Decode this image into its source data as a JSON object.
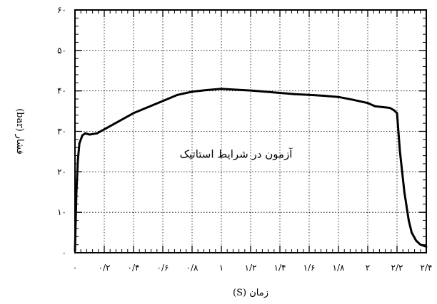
{
  "chart_data": {
    "type": "line",
    "title": "",
    "xlabel": "زمان (S)",
    "ylabel": "فشار (bar)",
    "annotation": "آزمون در شرایط استاتیک",
    "xlim": [
      0,
      2.4
    ],
    "ylim": [
      0,
      60
    ],
    "grid": true,
    "x_ticks": [
      {
        "value": 0,
        "label": "۰"
      },
      {
        "value": 0.2,
        "label": "۰/۲"
      },
      {
        "value": 0.4,
        "label": "۰/۴"
      },
      {
        "value": 0.6,
        "label": "۰/۶"
      },
      {
        "value": 0.8,
        "label": "۰/۸"
      },
      {
        "value": 1.0,
        "label": "۱"
      },
      {
        "value": 1.2,
        "label": "۱/۲"
      },
      {
        "value": 1.4,
        "label": "۱/۴"
      },
      {
        "value": 1.6,
        "label": "۱/۶"
      },
      {
        "value": 1.8,
        "label": "۱/۸"
      },
      {
        "value": 2.0,
        "label": "۲"
      },
      {
        "value": 2.2,
        "label": "۲/۲"
      },
      {
        "value": 2.4,
        "label": "۲/۴"
      }
    ],
    "y_ticks": [
      {
        "value": 0,
        "label": "۰"
      },
      {
        "value": 10,
        "label": "۱۰"
      },
      {
        "value": 20,
        "label": "۲۰"
      },
      {
        "value": 30,
        "label": "۳۰"
      },
      {
        "value": 40,
        "label": "۴۰"
      },
      {
        "value": 50,
        "label": "۵۰"
      },
      {
        "value": 60,
        "label": "۶۰"
      }
    ],
    "series": [
      {
        "color": "#000000",
        "x": [
          0,
          0.01,
          0.02,
          0.03,
          0.05,
          0.07,
          0.1,
          0.15,
          0.2,
          0.3,
          0.4,
          0.5,
          0.6,
          0.7,
          0.8,
          0.9,
          1.0,
          1.1,
          1.2,
          1.3,
          1.4,
          1.5,
          1.6,
          1.7,
          1.8,
          1.9,
          2.0,
          2.05,
          2.1,
          2.15,
          2.18,
          2.2,
          2.22,
          2.25,
          2.28,
          2.3,
          2.33,
          2.36,
          2.4
        ],
        "y": [
          0.5,
          15,
          23,
          27,
          29,
          29.5,
          29.2,
          29.5,
          30.5,
          32.5,
          34.5,
          36,
          37.5,
          39,
          39.8,
          40.2,
          40.5,
          40.3,
          40.1,
          39.8,
          39.5,
          39.2,
          39,
          38.8,
          38.5,
          37.8,
          37,
          36.2,
          36,
          35.8,
          35.2,
          34.5,
          25,
          15,
          8,
          5,
          3,
          2,
          1.5
        ]
      }
    ]
  }
}
